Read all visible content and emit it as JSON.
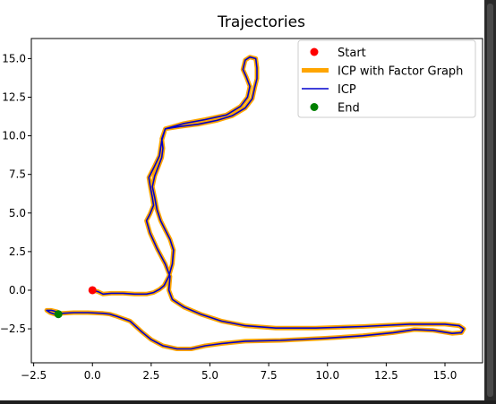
{
  "chart_data": {
    "type": "line",
    "title": "Trajectories",
    "xlabel": "",
    "ylabel": "",
    "xlim": [
      -2.6,
      16.6
    ],
    "ylim": [
      -4.7,
      16.3
    ],
    "xticks": [
      -2.5,
      0.0,
      2.5,
      5.0,
      7.5,
      10.0,
      12.5,
      15.0
    ],
    "yticks": [
      -2.5,
      0.0,
      2.5,
      5.0,
      7.5,
      10.0,
      12.5,
      15.0
    ],
    "xtick_labels": [
      "−2.5",
      "0.0",
      "2.5",
      "5.0",
      "7.5",
      "10.0",
      "12.5",
      "15.0"
    ],
    "ytick_labels": [
      "−2.5",
      "0.0",
      "2.5",
      "5.0",
      "7.5",
      "10.0",
      "12.5",
      "15.0"
    ],
    "grid": false,
    "legend_position": "top-right",
    "start_point": {
      "name": "Start",
      "x": 0.0,
      "y": 0.0,
      "color": "#ff0000"
    },
    "end_point": {
      "name": "End",
      "x": -1.45,
      "y": -1.55,
      "color": "#008000"
    },
    "series": [
      {
        "name": "ICP with Factor Graph",
        "color": "#ffa500"
      },
      {
        "name": "ICP",
        "color": "#0000cd"
      }
    ],
    "path": [
      [
        0.0,
        0.0
      ],
      [
        0.25,
        -0.1
      ],
      [
        0.45,
        -0.25
      ],
      [
        0.8,
        -0.2
      ],
      [
        1.3,
        -0.2
      ],
      [
        1.8,
        -0.25
      ],
      [
        2.3,
        -0.25
      ],
      [
        2.6,
        -0.15
      ],
      [
        2.85,
        0.05
      ],
      [
        3.05,
        0.3
      ],
      [
        3.25,
        0.9
      ],
      [
        3.4,
        1.7
      ],
      [
        3.45,
        2.6
      ],
      [
        3.3,
        3.3
      ],
      [
        3.1,
        3.9
      ],
      [
        2.9,
        4.5
      ],
      [
        2.75,
        5.2
      ],
      [
        2.65,
        6.0
      ],
      [
        2.55,
        6.7
      ],
      [
        2.65,
        7.4
      ],
      [
        2.8,
        8.0
      ],
      [
        2.95,
        8.6
      ],
      [
        3.0,
        9.2
      ],
      [
        2.95,
        9.8
      ],
      [
        3.1,
        10.45
      ],
      [
        3.7,
        10.6
      ],
      [
        4.5,
        10.75
      ],
      [
        5.3,
        11.0
      ],
      [
        5.95,
        11.3
      ],
      [
        6.5,
        11.8
      ],
      [
        6.8,
        12.4
      ],
      [
        6.9,
        13.1
      ],
      [
        7.0,
        13.7
      ],
      [
        7.0,
        14.4
      ],
      [
        6.95,
        15.0
      ],
      [
        6.7,
        15.1
      ],
      [
        6.5,
        14.9
      ],
      [
        6.4,
        14.3
      ],
      [
        6.55,
        13.8
      ],
      [
        6.7,
        13.2
      ],
      [
        6.6,
        12.5
      ],
      [
        6.3,
        11.9
      ],
      [
        5.7,
        11.35
      ],
      [
        4.8,
        11.05
      ],
      [
        3.9,
        10.8
      ],
      [
        3.1,
        10.45
      ],
      [
        2.95,
        9.7
      ],
      [
        2.85,
        8.7
      ],
      [
        2.6,
        7.9
      ],
      [
        2.4,
        7.3
      ],
      [
        2.45,
        6.8
      ],
      [
        2.55,
        6.0
      ],
      [
        2.6,
        5.5
      ],
      [
        2.45,
        4.95
      ],
      [
        2.3,
        4.5
      ],
      [
        2.45,
        3.7
      ],
      [
        2.75,
        2.7
      ],
      [
        3.1,
        1.7
      ],
      [
        3.3,
        0.9
      ],
      [
        3.25,
        0.0
      ],
      [
        3.4,
        -0.6
      ],
      [
        3.9,
        -1.1
      ],
      [
        4.6,
        -1.55
      ],
      [
        5.5,
        -2.0
      ],
      [
        6.5,
        -2.3
      ],
      [
        7.8,
        -2.45
      ],
      [
        9.5,
        -2.45
      ],
      [
        11.5,
        -2.35
      ],
      [
        13.5,
        -2.2
      ],
      [
        15.0,
        -2.2
      ],
      [
        15.6,
        -2.3
      ],
      [
        15.8,
        -2.5
      ],
      [
        15.7,
        -2.75
      ],
      [
        15.3,
        -2.8
      ],
      [
        14.5,
        -2.6
      ],
      [
        13.7,
        -2.55
      ],
      [
        12.8,
        -2.75
      ],
      [
        11.5,
        -2.95
      ],
      [
        10.0,
        -3.1
      ],
      [
        8.0,
        -3.25
      ],
      [
        6.5,
        -3.3
      ],
      [
        5.5,
        -3.45
      ],
      [
        4.8,
        -3.6
      ],
      [
        4.2,
        -3.8
      ],
      [
        3.6,
        -3.8
      ],
      [
        3.0,
        -3.6
      ],
      [
        2.5,
        -3.2
      ],
      [
        2.1,
        -2.7
      ],
      [
        1.6,
        -2.0
      ],
      [
        1.05,
        -1.7
      ],
      [
        0.75,
        -1.55
      ],
      [
        0.45,
        -1.5
      ],
      [
        -0.2,
        -1.45
      ],
      [
        -0.8,
        -1.45
      ],
      [
        -1.3,
        -1.5
      ],
      [
        -1.6,
        -1.55
      ],
      [
        -1.8,
        -1.45
      ],
      [
        -1.95,
        -1.3
      ],
      [
        -1.75,
        -1.3
      ],
      [
        -1.5,
        -1.4
      ],
      [
        -1.45,
        -1.55
      ]
    ]
  }
}
